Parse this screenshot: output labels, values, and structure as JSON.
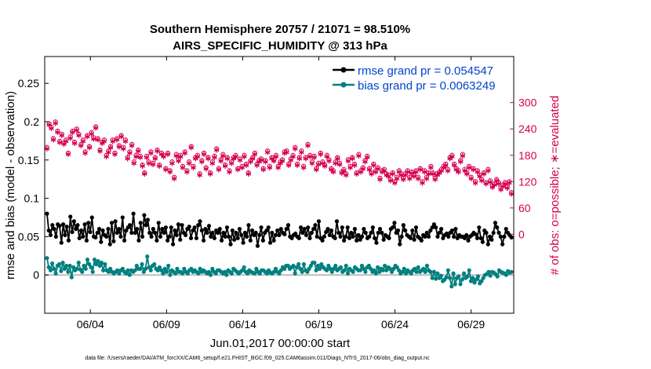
{
  "chart_data": {
    "type": "line",
    "title": "Southern Hemisphere 20757 / 21071 = 98.510%",
    "subtitle": "AIRS_SPECIFIC_HUMIDITY @ 313 hPa",
    "xlabel": "Jun.01,2017 00:00:00 start",
    "ylabel": "rmse and bias (model - observation)",
    "y2label": "# of obs: o=possible; ∗=evaluated",
    "footnote": "data file: /Users/raeder/DAI/ATM_forcXX/CAM6_setup/f.e21.FHIST_BGC.f09_025.CAM6assim.011/Diags_NTrS_2017-06/obs_diag_output.nc",
    "xlim": [
      1.0,
      31.8
    ],
    "ylim": [
      -0.05,
      0.285
    ],
    "y2lim": [
      -180,
      405
    ],
    "x_ticks": [
      4,
      9,
      14,
      19,
      24,
      29
    ],
    "x_tick_labels": [
      "06/04",
      "06/09",
      "06/14",
      "06/19",
      "06/24",
      "06/29"
    ],
    "y_ticks": [
      0,
      0.05,
      0.1,
      0.15,
      0.2,
      0.25
    ],
    "y_tick_labels": [
      "0",
      "0.05",
      "0.1",
      "0.15",
      "0.2",
      "0.25"
    ],
    "y2_ticks": [
      0,
      60,
      120,
      180,
      240,
      300
    ],
    "y2_tick_labels": [
      "0",
      "60",
      "120",
      "180",
      "240",
      "300"
    ],
    "grid": false,
    "legend_position": "top-right",
    "colors": {
      "rmse": "#000000",
      "bias": "#008080",
      "obs": "#d5004f",
      "zero_line": "#bbbbbb",
      "legend_text": "#0044cc"
    },
    "series": [
      {
        "name": "rmse grand pr = 0.054547",
        "axis": "left",
        "values": [
          0.08,
          0.058,
          0.052,
          0.065,
          0.06,
          0.05,
          0.066,
          0.064,
          0.042,
          0.066,
          0.052,
          0.063,
          0.045,
          0.076,
          0.056,
          0.07,
          0.06,
          0.065,
          0.048,
          0.058,
          0.05,
          0.066,
          0.045,
          0.068,
          0.056,
          0.075,
          0.05,
          0.049,
          0.055,
          0.06,
          0.043,
          0.058,
          0.052,
          0.05,
          0.06,
          0.04,
          0.068,
          0.044,
          0.07,
          0.055,
          0.06,
          0.05,
          0.075,
          0.045,
          0.058,
          0.062,
          0.065,
          0.055,
          0.08,
          0.055,
          0.06,
          0.045,
          0.068,
          0.05,
          0.078,
          0.065,
          0.072,
          0.055,
          0.05,
          0.06,
          0.055,
          0.045,
          0.068,
          0.05,
          0.06,
          0.055,
          0.062,
          0.045,
          0.05,
          0.062,
          0.04,
          0.058,
          0.052,
          0.066,
          0.046,
          0.065,
          0.055,
          0.052,
          0.06,
          0.063,
          0.048,
          0.058,
          0.062,
          0.048,
          0.065,
          0.07,
          0.058,
          0.045,
          0.06,
          0.055,
          0.064,
          0.05,
          0.055,
          0.048,
          0.058,
          0.055,
          0.06,
          0.045,
          0.055,
          0.05,
          0.062,
          0.05,
          0.04,
          0.058,
          0.046,
          0.055,
          0.048,
          0.06,
          0.052,
          0.042,
          0.055,
          0.05,
          0.065,
          0.045,
          0.058,
          0.052,
          0.055,
          0.038,
          0.052,
          0.062,
          0.045,
          0.055,
          0.058,
          0.062,
          0.042,
          0.055,
          0.045,
          0.052,
          0.058,
          0.052,
          0.06,
          0.055,
          0.053,
          0.06,
          0.065,
          0.05,
          0.048,
          0.052,
          0.054,
          0.05,
          0.048,
          0.062,
          0.055,
          0.06,
          0.052,
          0.062,
          0.048,
          0.055,
          0.06,
          0.065,
          0.05,
          0.07,
          0.048,
          0.045,
          0.05,
          0.056,
          0.06,
          0.052,
          0.058,
          0.05,
          0.048,
          0.07,
          0.055,
          0.05,
          0.062,
          0.045,
          0.05,
          0.062,
          0.048,
          0.055,
          0.05,
          0.06,
          0.045,
          0.052,
          0.046,
          0.05,
          0.06,
          0.055,
          0.048,
          0.05,
          0.055,
          0.062,
          0.048,
          0.042,
          0.055,
          0.06,
          0.055,
          0.046,
          0.052,
          0.05,
          0.048,
          0.06,
          0.062,
          0.068,
          0.055,
          0.058,
          0.04,
          0.05,
          0.065,
          0.058,
          0.052,
          0.05,
          0.048,
          0.058,
          0.046,
          0.062,
          0.05,
          0.048,
          0.045,
          0.052,
          0.05,
          0.055,
          0.05,
          0.058,
          0.062,
          0.066,
          0.062,
          0.05,
          0.055,
          0.06,
          0.048,
          0.052,
          0.054,
          0.05,
          0.055,
          0.058,
          0.05,
          0.06,
          0.048,
          0.052,
          0.05,
          0.05,
          0.048,
          0.052,
          0.045,
          0.05,
          0.052,
          0.055,
          0.053,
          0.048,
          0.062,
          0.048,
          0.043,
          0.058,
          0.055,
          0.04,
          0.05,
          0.046,
          0.055,
          0.068,
          0.062,
          0.055,
          0.05,
          0.04,
          0.05,
          0.06,
          0.055,
          0.052,
          0.049
        ]
      },
      {
        "name": "bias grand pr = 0.0063249",
        "axis": "left",
        "values": [
          0.022,
          0.01,
          0.006,
          0.015,
          0.008,
          0.002,
          0.012,
          0.014,
          0.005,
          0.016,
          0.008,
          0.012,
          0.004,
          0.012,
          -0.003,
          0.01,
          0.006,
          0.008,
          0.016,
          0.007,
          0.004,
          0.012,
          0.008,
          0.02,
          0.014,
          0.01,
          0.004,
          0.02,
          0.014,
          0.018,
          0.012,
          0.016,
          0.006,
          0.014,
          0.006,
          0.004,
          0.008,
          0.004,
          0.002,
          0.004,
          0.006,
          0.002,
          0.006,
          0.008,
          0.004,
          0.002,
          0.006,
          0.0,
          0.006,
          0.004,
          0.006,
          0.012,
          0.008,
          0.008,
          0.014,
          0.004,
          0.008,
          0.024,
          0.01,
          0.006,
          0.012,
          0.014,
          0.008,
          0.006,
          0.01,
          0.006,
          0.002,
          0.008,
          0.004,
          0.012,
          0.0,
          0.006,
          0.004,
          0.002,
          0.008,
          0.004,
          0.004,
          0.002,
          0.008,
          0.004,
          0.002,
          0.006,
          0.008,
          0.004,
          0.006,
          0.004,
          0.002,
          0.008,
          0.004,
          0.006,
          0.004,
          0.002,
          0.004,
          0.0,
          0.008,
          0.004,
          0.002,
          0.006,
          0.006,
          0.004,
          0.002,
          0.004,
          0.0,
          0.006,
          0.004,
          0.002,
          0.008,
          0.006,
          0.004,
          0.002,
          0.004,
          0.006,
          0.01,
          0.004,
          0.002,
          0.006,
          0.004,
          0.003,
          0.002,
          0.008,
          0.004,
          0.002,
          0.006,
          0.006,
          0.004,
          0.002,
          0.006,
          0.003,
          0.002,
          0.004,
          0.008,
          0.004,
          0.002,
          0.006,
          0.01,
          0.008,
          0.012,
          0.012,
          0.008,
          0.01,
          0.012,
          0.002,
          0.01,
          0.014,
          0.008,
          0.004,
          0.014,
          0.006,
          0.004,
          0.008,
          0.012,
          0.016,
          0.016,
          0.006,
          0.012,
          0.008,
          0.014,
          0.01,
          0.008,
          0.006,
          0.012,
          0.008,
          0.004,
          0.008,
          0.012,
          0.006,
          0.008,
          0.01,
          0.004,
          0.006,
          0.012,
          0.002,
          0.008,
          0.006,
          0.004,
          0.01,
          0.008,
          0.006,
          0.006,
          0.012,
          0.008,
          0.004,
          0.01,
          0.012,
          0.008,
          0.004,
          0.006,
          0.002,
          0.01,
          0.004,
          0.008,
          0.006,
          0.012,
          0.006,
          0.01,
          0.008,
          0.004,
          0.008,
          0.012,
          0.01,
          0.006,
          0.002,
          0.004,
          0.008,
          0.002,
          0.006,
          0.004,
          0.002,
          0.006,
          0.008,
          0.004,
          0.01,
          0.004,
          0.006,
          0.008,
          0.004,
          0.012,
          0.006,
          0.004,
          -0.004,
          0.004,
          -0.005,
          0.002,
          -0.004,
          -0.001,
          -0.008,
          -0.006,
          -0.003,
          0.006,
          -0.004,
          -0.015,
          0.002,
          -0.012,
          -0.004,
          -0.002,
          -0.012,
          -0.006,
          0.002,
          -0.004,
          -0.002,
          0.006,
          -0.008,
          -0.004,
          -0.01,
          -0.006,
          -0.002,
          -0.011,
          -0.008,
          -0.004,
          0.0,
          0.001,
          0.004,
          -0.001,
          0.004,
          0.003,
          0.001,
          -0.002,
          0.006,
          0.004,
          0.003,
          0.002,
          0.0,
          0.005,
          0.003,
          0.004
        ]
      },
      {
        "name": "# of obs: possible",
        "axis": "right",
        "marker": "o",
        "values": [
          198,
          252,
          244,
          218,
          256,
          235,
          212,
          228,
          208,
          215,
          185,
          222,
          235,
          210,
          240,
          228,
          205,
          215,
          188,
          225,
          200,
          232,
          220,
          245,
          218,
          192,
          210,
          215,
          180,
          190,
          200,
          215,
          185,
          218,
          202,
          225,
          198,
          215,
          175,
          188,
          205,
          165,
          180,
          192,
          178,
          158,
          140,
          178,
          165,
          188,
          162,
          175,
          192,
          158,
          185,
          180,
          150,
          185,
          145,
          165,
          130,
          182,
          170,
          180,
          155,
          188,
          145,
          165,
          200,
          155,
          175,
          180,
          138,
          168,
          185,
          152,
          175,
          140,
          165,
          178,
          195,
          150,
          170,
          182,
          158,
          175,
          145,
          165,
          175,
          180,
          150,
          172,
          155,
          180,
          160,
          140,
          168,
          175,
          185,
          160,
          168,
          172,
          150,
          168,
          190,
          155,
          175,
          170,
          180,
          155,
          165,
          170,
          188,
          190,
          160,
          172,
          180,
          198,
          160,
          175,
          190,
          155,
          175,
          205,
          180,
          165,
          178,
          150,
          162,
          185,
          165,
          158,
          180,
          170,
          150,
          145,
          165,
          175,
          162,
          142,
          148,
          138,
          170,
          155,
          175,
          160,
          140,
          182,
          145,
          152,
          168,
          178,
          150,
          140,
          160,
          145,
          152,
          128,
          145,
          148,
          138,
          135,
          125,
          140,
          120,
          130,
          145,
          138,
          128,
          138,
          145,
          130,
          142,
          135,
          145,
          130,
          150,
          120,
          145,
          130,
          140,
          155,
          140,
          128,
          138,
          142,
          148,
          155,
          160,
          148,
          175,
          180,
          160,
          150,
          145,
          168,
          182,
          148,
          140,
          155,
          130,
          150,
          120,
          145,
          135,
          125,
          140,
          118,
          148,
          122,
          110,
          115,
          125,
          118,
          105,
          112,
          118,
          108,
          120,
          95
        ]
      },
      {
        "name": "# of obs: evaluated",
        "axis": "right",
        "marker": "*",
        "values": [
          196,
          250,
          242,
          216,
          254,
          233,
          210,
          226,
          206,
          213,
          183,
          220,
          233,
          208,
          238,
          226,
          203,
          213,
          186,
          223,
          198,
          230,
          218,
          243,
          216,
          190,
          208,
          213,
          178,
          188,
          198,
          213,
          183,
          216,
          200,
          223,
          196,
          213,
          173,
          186,
          203,
          163,
          178,
          190,
          176,
          156,
          138,
          176,
          163,
          186,
          160,
          173,
          190,
          156,
          183,
          178,
          148,
          183,
          143,
          163,
          128,
          180,
          168,
          178,
          153,
          186,
          143,
          163,
          198,
          153,
          173,
          178,
          136,
          166,
          183,
          150,
          173,
          138,
          163,
          176,
          193,
          148,
          168,
          180,
          156,
          173,
          143,
          163,
          173,
          178,
          148,
          170,
          153,
          178,
          158,
          138,
          166,
          173,
          183,
          158,
          166,
          170,
          148,
          166,
          188,
          153,
          173,
          168,
          178,
          153,
          163,
          168,
          186,
          188,
          158,
          170,
          178,
          196,
          158,
          173,
          188,
          153,
          173,
          203,
          178,
          163,
          176,
          148,
          160,
          183,
          163,
          156,
          178,
          168,
          148,
          143,
          163,
          173,
          160,
          140,
          146,
          136,
          168,
          153,
          173,
          158,
          138,
          180,
          143,
          150,
          166,
          176,
          148,
          138,
          158,
          143,
          150,
          126,
          143,
          146,
          136,
          133,
          123,
          138,
          118,
          128,
          143,
          136,
          126,
          136,
          143,
          128,
          140,
          133,
          143,
          128,
          148,
          118,
          143,
          128,
          138,
          153,
          138,
          126,
          136,
          140,
          146,
          153,
          158,
          146,
          173,
          178,
          158,
          148,
          143,
          166,
          180,
          146,
          138,
          153,
          128,
          148,
          118,
          143,
          133,
          123,
          138,
          116,
          146,
          120,
          108,
          113,
          123,
          116,
          103,
          110,
          116,
          106,
          118,
          93
        ]
      }
    ]
  }
}
